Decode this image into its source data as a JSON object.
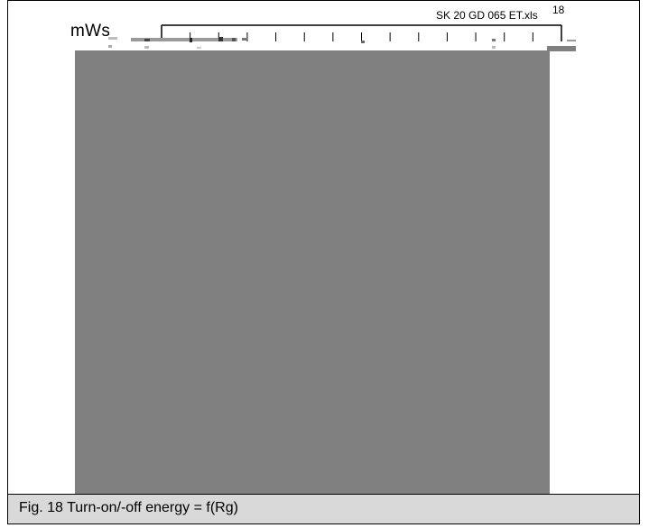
{
  "header": {
    "filename": "SK 20 GD 065 ET.xls",
    "figure_number": "18"
  },
  "chart": {
    "y_unit": "mWs"
  },
  "caption": {
    "text": "Fig. 18 Turn-on/-off energy = f(Rg)"
  },
  "colors": {
    "plot_fill": "#808080",
    "caption_bg": "#d9d9d9",
    "border": "#000000"
  }
}
